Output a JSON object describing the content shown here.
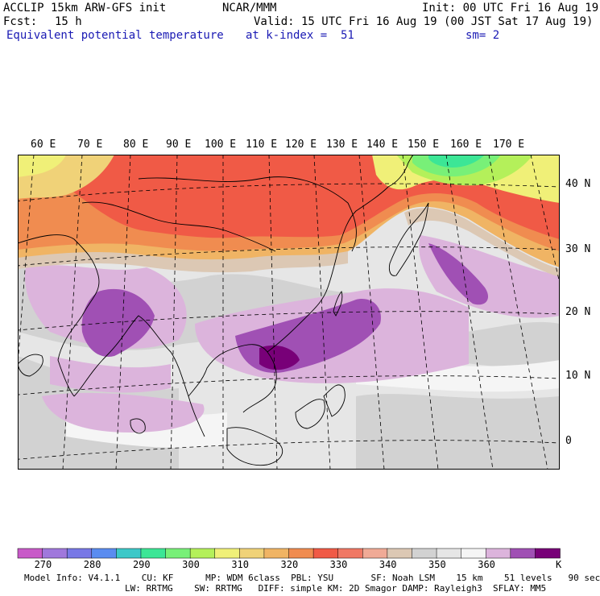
{
  "header": {
    "model": "ACCLIP 15km ARW-GFS init",
    "org": "NCAR/MMM",
    "init": "Init: 00 UTC Fri 16 Aug 19",
    "fcst_label": "Fcst:",
    "fcst_value": "15 h",
    "valid": "Valid: 15 UTC Fri 16 Aug 19 (00 JST Sat 17 Aug 19)",
    "field": "Equivalent potential temperature",
    "level": "at k-index =  51",
    "smooth": "sm= 2"
  },
  "map": {
    "lon_labels": [
      "60 E",
      "70 E",
      "80 E",
      "90 E",
      "100 E",
      "110 E",
      "120 E",
      "130 E",
      "140 E",
      "150 E",
      "160 E",
      "170 E"
    ],
    "lat_labels": [
      "40 N",
      "30 N",
      "20 N",
      "10 N",
      "0"
    ],
    "colors": {
      "land_line": "#000000",
      "graticule": "#000000"
    }
  },
  "colorbar": {
    "labels": [
      "270",
      "280",
      "290",
      "300",
      "310",
      "320",
      "330",
      "340",
      "350",
      "360"
    ],
    "unit": "K",
    "colors": [
      "#c85ac8",
      "#a078dc",
      "#7878e6",
      "#5a8cf0",
      "#3cc8c8",
      "#3ce696",
      "#78f078",
      "#b4f05a",
      "#f0f078",
      "#f0d278",
      "#f0b464",
      "#f08c50",
      "#f05a46",
      "#f07864",
      "#f0aa96",
      "#dcc8b4",
      "#d2d2d2",
      "#e6e6e6",
      "#f5f5f5",
      "#dcb4dc",
      "#a050b4",
      "#780078"
    ]
  },
  "footer": {
    "line1": "Model Info: V4.1.1    CU: KF      MP: WDM 6class  PBL: YSU       SF: Noah LSM    15 km    51 levels   90 sec",
    "line2": "LW: RRTMG    SW: RRTMG   DIFF: simple KM: 2D Smagor DAMP: Rayleigh3  SFLAY: MM5"
  }
}
